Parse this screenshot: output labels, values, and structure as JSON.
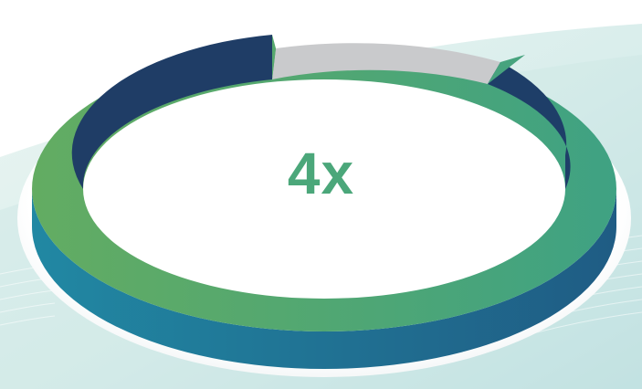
{
  "infographic": {
    "headline": "4x",
    "ring_share": 0.85,
    "colors": {
      "headline": "#4ba77a",
      "ring_top_start": "#63ac62",
      "ring_top_end": "#3fa283",
      "ring_side_start": "#2386a1",
      "ring_side_end": "#1f5d84",
      "ring_inner_wall": "#1f3d66",
      "ring_remainder": "#c9cacc",
      "background_wave": "#cfe9e7"
    }
  }
}
